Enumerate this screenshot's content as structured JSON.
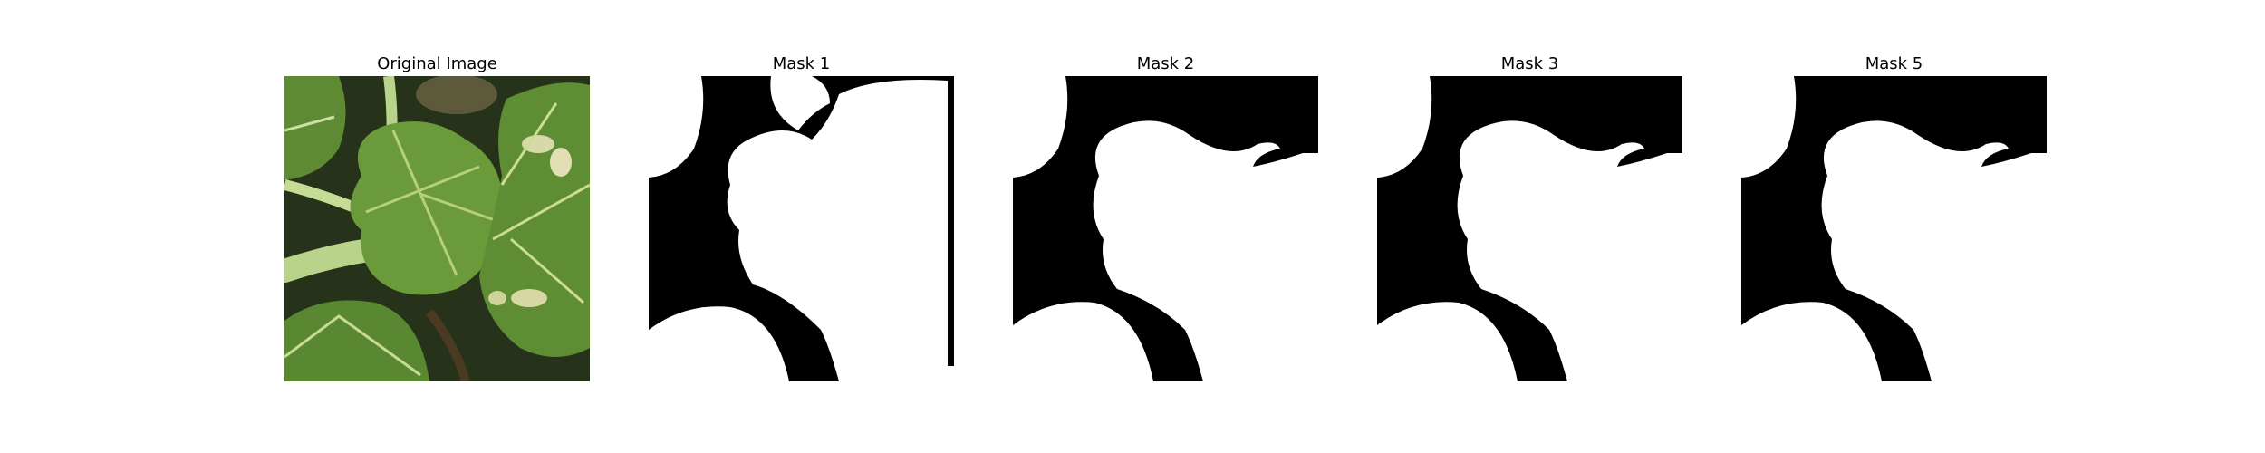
{
  "figure": {
    "panels": [
      {
        "title": "Original Image",
        "kind": "photo",
        "icon": "plant-leaves-photo"
      },
      {
        "title": "Mask 1",
        "kind": "mask"
      },
      {
        "title": "Mask 2",
        "kind": "mask"
      },
      {
        "title": "Mask 3",
        "kind": "mask"
      },
      {
        "title": "Mask 5",
        "kind": "mask"
      }
    ],
    "colors": {
      "mask_foreground": "#ffffff",
      "mask_background": "#000000",
      "leaf_dark": "#4f7a2c",
      "leaf_mid": "#6e9a3c",
      "leaf_light": "#a8c46a",
      "vein": "#d9e6b5",
      "shadow": "#1e2a14"
    }
  }
}
